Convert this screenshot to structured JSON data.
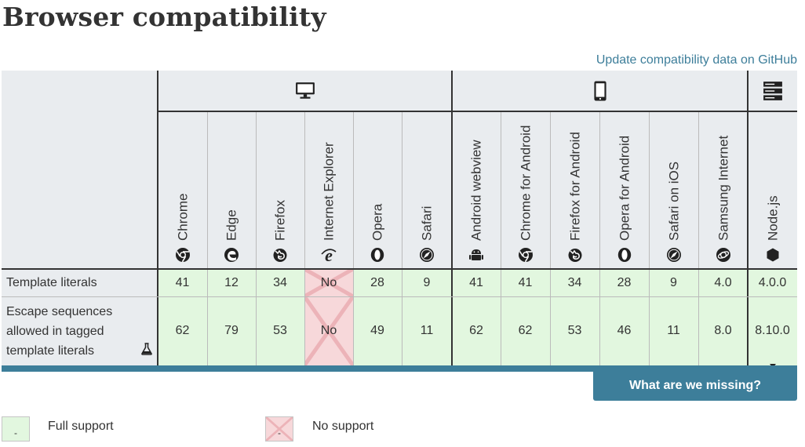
{
  "heading": "Browser compatibility",
  "gh_link": "Update compatibility data on GitHub",
  "browsers": [
    {
      "name": "Chrome",
      "icon": "chrome"
    },
    {
      "name": "Edge",
      "icon": "edge"
    },
    {
      "name": "Firefox",
      "icon": "firefox"
    },
    {
      "name": "Internet Explorer",
      "icon": "ie"
    },
    {
      "name": "Opera",
      "icon": "opera"
    },
    {
      "name": "Safari",
      "icon": "safari"
    },
    {
      "name": "Android webview",
      "icon": "android"
    },
    {
      "name": "Chrome for Android",
      "icon": "chrome"
    },
    {
      "name": "Firefox for Android",
      "icon": "firefox"
    },
    {
      "name": "Opera for Android",
      "icon": "opera"
    },
    {
      "name": "Safari on iOS",
      "icon": "safari"
    },
    {
      "name": "Samsung Internet",
      "icon": "samsung"
    },
    {
      "name": "Node.js",
      "icon": "nodejs"
    }
  ],
  "platforms": [
    {
      "name": "desktop",
      "icon": "desktop-icon"
    },
    {
      "name": "mobile",
      "icon": "mobile-icon"
    },
    {
      "name": "server",
      "icon": "server-icon"
    }
  ],
  "rows": [
    {
      "feature": "Template literals",
      "experimental": false,
      "values": [
        "41",
        "12",
        "34",
        "No",
        "28",
        "9",
        "41",
        "41",
        "34",
        "28",
        "9",
        "4.0",
        "4.0.0"
      ],
      "support": [
        "yes",
        "yes",
        "yes",
        "no",
        "yes",
        "yes",
        "yes",
        "yes",
        "yes",
        "yes",
        "yes",
        "yes",
        "yes"
      ]
    },
    {
      "feature": "Escape sequences allowed in tagged template literals",
      "experimental": true,
      "values": [
        "62",
        "79",
        "53",
        "No",
        "49",
        "11",
        "62",
        "62",
        "53",
        "46",
        "11",
        "8.0",
        "8.10.0"
      ],
      "support": [
        "yes",
        "yes",
        "yes",
        "no",
        "yes",
        "yes",
        "yes",
        "yes",
        "yes",
        "yes",
        "yes",
        "yes",
        "yes"
      ]
    }
  ],
  "missing_button": "What are we missing?",
  "legend": [
    {
      "label": "Full support",
      "glyph": "-",
      "type": "yes"
    },
    {
      "label": "No support",
      "glyph": "-",
      "type": "no"
    }
  ],
  "colors": {
    "full_support": "#e2f7df",
    "no_support": "#f7d8da",
    "accent": "#3d7e9a",
    "header_bg": "#e9ecef"
  }
}
